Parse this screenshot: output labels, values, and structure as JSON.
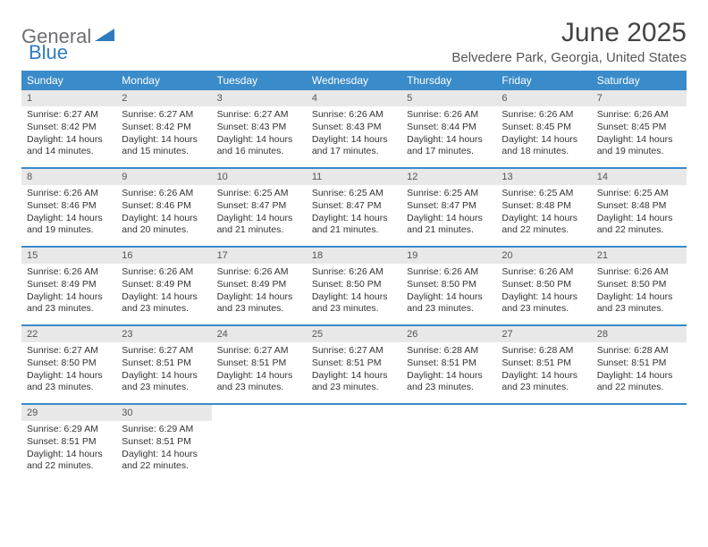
{
  "brand": {
    "general": "General",
    "blue": "Blue"
  },
  "title": "June 2025",
  "location": "Belvedere Park, Georgia, United States",
  "colors": {
    "header_bg": "#3a8bc9",
    "daynum_bg": "#e8e8e8"
  },
  "weekdays": [
    "Sunday",
    "Monday",
    "Tuesday",
    "Wednesday",
    "Thursday",
    "Friday",
    "Saturday"
  ],
  "days": [
    {
      "n": "1",
      "sunrise": "Sunrise: 6:27 AM",
      "sunset": "Sunset: 8:42 PM",
      "day1": "Daylight: 14 hours",
      "day2": "and 14 minutes."
    },
    {
      "n": "2",
      "sunrise": "Sunrise: 6:27 AM",
      "sunset": "Sunset: 8:42 PM",
      "day1": "Daylight: 14 hours",
      "day2": "and 15 minutes."
    },
    {
      "n": "3",
      "sunrise": "Sunrise: 6:27 AM",
      "sunset": "Sunset: 8:43 PM",
      "day1": "Daylight: 14 hours",
      "day2": "and 16 minutes."
    },
    {
      "n": "4",
      "sunrise": "Sunrise: 6:26 AM",
      "sunset": "Sunset: 8:43 PM",
      "day1": "Daylight: 14 hours",
      "day2": "and 17 minutes."
    },
    {
      "n": "5",
      "sunrise": "Sunrise: 6:26 AM",
      "sunset": "Sunset: 8:44 PM",
      "day1": "Daylight: 14 hours",
      "day2": "and 17 minutes."
    },
    {
      "n": "6",
      "sunrise": "Sunrise: 6:26 AM",
      "sunset": "Sunset: 8:45 PM",
      "day1": "Daylight: 14 hours",
      "day2": "and 18 minutes."
    },
    {
      "n": "7",
      "sunrise": "Sunrise: 6:26 AM",
      "sunset": "Sunset: 8:45 PM",
      "day1": "Daylight: 14 hours",
      "day2": "and 19 minutes."
    },
    {
      "n": "8",
      "sunrise": "Sunrise: 6:26 AM",
      "sunset": "Sunset: 8:46 PM",
      "day1": "Daylight: 14 hours",
      "day2": "and 19 minutes."
    },
    {
      "n": "9",
      "sunrise": "Sunrise: 6:26 AM",
      "sunset": "Sunset: 8:46 PM",
      "day1": "Daylight: 14 hours",
      "day2": "and 20 minutes."
    },
    {
      "n": "10",
      "sunrise": "Sunrise: 6:25 AM",
      "sunset": "Sunset: 8:47 PM",
      "day1": "Daylight: 14 hours",
      "day2": "and 21 minutes."
    },
    {
      "n": "11",
      "sunrise": "Sunrise: 6:25 AM",
      "sunset": "Sunset: 8:47 PM",
      "day1": "Daylight: 14 hours",
      "day2": "and 21 minutes."
    },
    {
      "n": "12",
      "sunrise": "Sunrise: 6:25 AM",
      "sunset": "Sunset: 8:47 PM",
      "day1": "Daylight: 14 hours",
      "day2": "and 21 minutes."
    },
    {
      "n": "13",
      "sunrise": "Sunrise: 6:25 AM",
      "sunset": "Sunset: 8:48 PM",
      "day1": "Daylight: 14 hours",
      "day2": "and 22 minutes."
    },
    {
      "n": "14",
      "sunrise": "Sunrise: 6:25 AM",
      "sunset": "Sunset: 8:48 PM",
      "day1": "Daylight: 14 hours",
      "day2": "and 22 minutes."
    },
    {
      "n": "15",
      "sunrise": "Sunrise: 6:26 AM",
      "sunset": "Sunset: 8:49 PM",
      "day1": "Daylight: 14 hours",
      "day2": "and 23 minutes."
    },
    {
      "n": "16",
      "sunrise": "Sunrise: 6:26 AM",
      "sunset": "Sunset: 8:49 PM",
      "day1": "Daylight: 14 hours",
      "day2": "and 23 minutes."
    },
    {
      "n": "17",
      "sunrise": "Sunrise: 6:26 AM",
      "sunset": "Sunset: 8:49 PM",
      "day1": "Daylight: 14 hours",
      "day2": "and 23 minutes."
    },
    {
      "n": "18",
      "sunrise": "Sunrise: 6:26 AM",
      "sunset": "Sunset: 8:50 PM",
      "day1": "Daylight: 14 hours",
      "day2": "and 23 minutes."
    },
    {
      "n": "19",
      "sunrise": "Sunrise: 6:26 AM",
      "sunset": "Sunset: 8:50 PM",
      "day1": "Daylight: 14 hours",
      "day2": "and 23 minutes."
    },
    {
      "n": "20",
      "sunrise": "Sunrise: 6:26 AM",
      "sunset": "Sunset: 8:50 PM",
      "day1": "Daylight: 14 hours",
      "day2": "and 23 minutes."
    },
    {
      "n": "21",
      "sunrise": "Sunrise: 6:26 AM",
      "sunset": "Sunset: 8:50 PM",
      "day1": "Daylight: 14 hours",
      "day2": "and 23 minutes."
    },
    {
      "n": "22",
      "sunrise": "Sunrise: 6:27 AM",
      "sunset": "Sunset: 8:50 PM",
      "day1": "Daylight: 14 hours",
      "day2": "and 23 minutes."
    },
    {
      "n": "23",
      "sunrise": "Sunrise: 6:27 AM",
      "sunset": "Sunset: 8:51 PM",
      "day1": "Daylight: 14 hours",
      "day2": "and 23 minutes."
    },
    {
      "n": "24",
      "sunrise": "Sunrise: 6:27 AM",
      "sunset": "Sunset: 8:51 PM",
      "day1": "Daylight: 14 hours",
      "day2": "and 23 minutes."
    },
    {
      "n": "25",
      "sunrise": "Sunrise: 6:27 AM",
      "sunset": "Sunset: 8:51 PM",
      "day1": "Daylight: 14 hours",
      "day2": "and 23 minutes."
    },
    {
      "n": "26",
      "sunrise": "Sunrise: 6:28 AM",
      "sunset": "Sunset: 8:51 PM",
      "day1": "Daylight: 14 hours",
      "day2": "and 23 minutes."
    },
    {
      "n": "27",
      "sunrise": "Sunrise: 6:28 AM",
      "sunset": "Sunset: 8:51 PM",
      "day1": "Daylight: 14 hours",
      "day2": "and 23 minutes."
    },
    {
      "n": "28",
      "sunrise": "Sunrise: 6:28 AM",
      "sunset": "Sunset: 8:51 PM",
      "day1": "Daylight: 14 hours",
      "day2": "and 22 minutes."
    },
    {
      "n": "29",
      "sunrise": "Sunrise: 6:29 AM",
      "sunset": "Sunset: 8:51 PM",
      "day1": "Daylight: 14 hours",
      "day2": "and 22 minutes."
    },
    {
      "n": "30",
      "sunrise": "Sunrise: 6:29 AM",
      "sunset": "Sunset: 8:51 PM",
      "day1": "Daylight: 14 hours",
      "day2": "and 22 minutes."
    }
  ]
}
